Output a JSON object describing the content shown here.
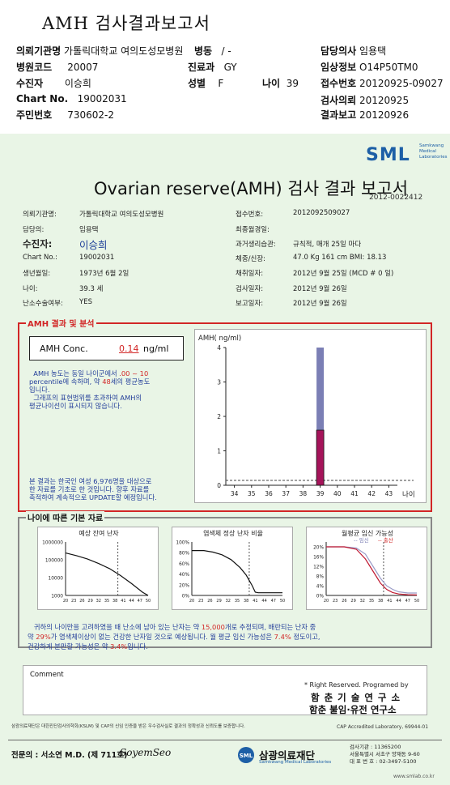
{
  "header": {
    "title": "AMH 검사결과보고서",
    "rows": [
      {
        "label": "의뢰기관명",
        "value": "가톨릭대학교 여의도성모병원"
      },
      {
        "label": "병동",
        "value": "/ -"
      },
      {
        "label": "담당의사",
        "value": "임용택"
      },
      {
        "label": "병원코드",
        "value": "20007"
      },
      {
        "label": "진료과",
        "value": "GY"
      },
      {
        "label": "임상정보",
        "value": "O14P50TM0"
      },
      {
        "label": "수진자",
        "value": "이승희"
      },
      {
        "label": "성별",
        "value": "F"
      },
      {
        "label": "나이",
        "value": "39"
      },
      {
        "label": "접수번호",
        "value": "20120925-09027"
      },
      {
        "label": "Chart No.",
        "value": "19002031"
      },
      {
        "label": "검사의뢰",
        "value": "20120925"
      },
      {
        "label": "주민번호",
        "value": "730602-2"
      },
      {
        "label": "결과보고",
        "value": "20120926"
      }
    ]
  },
  "logo": {
    "name": "SML",
    "sub1": "Samkwang",
    "sub2": "Medical",
    "sub3": "Laboratories"
  },
  "report": {
    "title": "Ovarian reserve(AMH) 검사 결과 보고서",
    "number": "2012-0022412",
    "left_fields": [
      {
        "label": "의뢰기관명:",
        "value": "가톨릭대학교 여의도성모병원"
      },
      {
        "label": "담당의:",
        "value": "임용택"
      },
      {
        "label": "수진자:",
        "value": "이승희"
      },
      {
        "label": "Chart No.:",
        "value": "19002031"
      },
      {
        "label": "생년월일:",
        "value": "1973년 6월 2일"
      },
      {
        "label": "나이:",
        "value": "39.3 세"
      },
      {
        "label": "난소수술여부:",
        "value": "YES"
      }
    ],
    "right_fields": [
      {
        "label": "접수번호:",
        "value": "2012092509027"
      },
      {
        "label": "최종월경일:",
        "value": ""
      },
      {
        "label": "과거생리습관:",
        "value": "규칙적, 매개  25일 마다"
      },
      {
        "label": "체중/신장:",
        "value": "47.0 Kg   161 cm    BMI:  18.13"
      },
      {
        "label": "채취일자:",
        "value": "2012년 9월 25일   (MCD #  0 일)"
      },
      {
        "label": "검사일자:",
        "value": "2012년 9월 26일"
      },
      {
        "label": "보고일자:",
        "value": "2012년 9월 26일"
      }
    ]
  },
  "amh_section": {
    "title": "AMH 결과 및 분석",
    "conc_label": "AMH Conc.",
    "conc_value": "0.14",
    "conc_unit": "ng/ml",
    "desc1a": "AMH 농도는 동일 나이군에서 ",
    "desc1b": ".00 ~ 10",
    "desc2a": "percentile에 속하며, 약 ",
    "desc2b": "48",
    "desc2c": "세의 평균농도",
    "desc3": "입니다.",
    "desc4": "그래프의 표현범위를 초과하여 AMH의",
    "desc5": "평균나이선이 표시되지 않습니다.",
    "note1": "본 결과는 한국인 여성 6,976명을 대상으로",
    "note2": "한 자료를 기초로 한 것입니다. 향후 자료를",
    "note3": "축적하여 계속적으로 UPDATE할 예정입니다."
  },
  "chart_data": [
    {
      "type": "bar",
      "title": "",
      "ylabel": "AMH( ng/ml)",
      "xlabel": "나이",
      "x_ticks": [
        34,
        35,
        36,
        37,
        38,
        39,
        40,
        41,
        42,
        43
      ],
      "y_ticks": [
        0,
        1,
        2,
        3,
        4
      ],
      "ylim": [
        0,
        4
      ],
      "xlim": [
        33.5,
        43.5
      ],
      "range_bar": {
        "x": 39,
        "low": 1.6,
        "high": 4.0,
        "color": "#7b7fb5"
      },
      "value_bar": {
        "x": 39,
        "low": 0,
        "high": 1.6,
        "color": "#a5145a"
      },
      "dashed_level": 0.14,
      "grid": false
    },
    {
      "type": "line",
      "title": "예상 잔여 난자",
      "y_ticks": [
        "1000",
        "10000",
        "100000",
        "1000000"
      ],
      "x_ticks": [
        20,
        23,
        26,
        29,
        32,
        35,
        38,
        41,
        44,
        47,
        50
      ],
      "yscale": "log",
      "ylim": [
        1000,
        1000000
      ],
      "x": [
        20,
        24,
        28,
        32,
        36,
        40,
        44,
        48,
        50
      ],
      "values": [
        240000,
        170000,
        110000,
        62000,
        32000,
        13000,
        4600,
        1500,
        1000
      ],
      "reference_age": 39
    },
    {
      "type": "line",
      "title": "염색체 정상 난자 비율",
      "y_ticks": [
        "0%",
        "20%",
        "40%",
        "60%",
        "80%",
        "100%"
      ],
      "x_ticks": [
        20,
        23,
        26,
        29,
        32,
        35,
        38,
        41,
        44,
        47,
        50
      ],
      "ylim": [
        0,
        100
      ],
      "x": [
        20,
        24,
        27,
        30,
        33,
        36,
        38,
        40,
        41,
        42,
        50
      ],
      "values": [
        84,
        84,
        81,
        76,
        67,
        52,
        38,
        18,
        6,
        5,
        5
      ],
      "reference_age": 39
    },
    {
      "type": "line",
      "title": "월평균 임신 가능성",
      "legend": [
        "임신",
        "출산"
      ],
      "y_ticks": [
        "0%",
        "4%",
        "8%",
        "12%",
        "16%",
        "20%"
      ],
      "x_ticks": [
        20,
        23,
        26,
        29,
        32,
        35,
        38,
        41,
        44,
        47,
        50
      ],
      "ylim": [
        0,
        22
      ],
      "reference_age": 39,
      "series": [
        {
          "name": "임신",
          "x": [
            20,
            26,
            30,
            33,
            36,
            38,
            40,
            42,
            44,
            47,
            50
          ],
          "values": [
            20,
            20,
            19.5,
            17,
            11,
            7,
            4,
            2.5,
            1.5,
            1,
            1
          ]
        },
        {
          "name": "출산",
          "x": [
            20,
            26,
            30,
            33,
            36,
            38,
            40,
            42,
            44,
            47,
            50
          ],
          "values": [
            20,
            20,
            19,
            15,
            9,
            5,
            2.5,
            1.2,
            0.6,
            0.3,
            0.2
          ]
        }
      ]
    }
  ],
  "age_section": {
    "title": "나이에 따른 기본 자료",
    "line1a": "귀하의 나이만을 고려하였을 때 난소에 남아 있는 난자는 약  ",
    "eggs": "15,000",
    "line1b": "개로 추정되며, 배란되는 난자 중",
    "line2a": "약  ",
    "normal_pct": "29%",
    "line2b": "가 염색체이상이 없는 건강한 난자일 것으로 예상됩니다. 월 평균 임신 가능성은 ",
    "preg_pct": "7.4%",
    "line2c": " 정도이고,",
    "line3a": "건강하게 분만할 가능성은 약 ",
    "birth_pct": "3.4%",
    "line3b": "입니다."
  },
  "comment": {
    "label": "Comment"
  },
  "signature": {
    "rights": "* Right Reserved. Programed by",
    "inst1": "함 춘  기 술  연 구 소",
    "inst2": "함춘 불임·유전 연구소"
  },
  "footer": {
    "cert": "삼광의료재단은 대한진단검사의학회(KSLM) 및 CAP의 신임 인증을 받은 우수검사실로 결과의 정확성과 신뢰도를 보증합니다.",
    "cap": "CAP  Accredited  Laboratory,   69944-01",
    "doctor": "전문의 : 서소연 M.D. (제 711호)",
    "doctor_sig": "SoyemSeo",
    "foundation": "삼광의료재단",
    "foundation_en": "Samkwang Medical Laboratories",
    "reg": "검사기관 : 11365200",
    "address": "서울특별시 서초구 양재동 9-60",
    "phone": "대 표 번 호 : 02-3497-5100",
    "url": "www.smlab.co.kr"
  }
}
